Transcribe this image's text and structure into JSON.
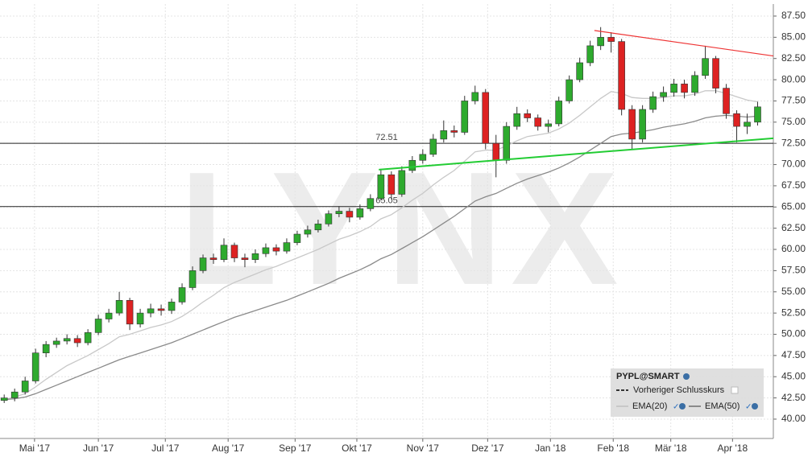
{
  "chart_data": {
    "type": "candlestick",
    "watermark": "LYNX",
    "xlim": [
      -0.4,
      73.5
    ],
    "ylim": [
      37.72,
      88.92
    ],
    "yticks": [
      {
        "value": 40,
        "label": "40.00"
      },
      {
        "value": 42.5,
        "label": "42.50"
      },
      {
        "value": 45,
        "label": "45.00"
      },
      {
        "value": 47.5,
        "label": "47.50"
      },
      {
        "value": 50,
        "label": "50.00"
      },
      {
        "value": 52.5,
        "label": "52.50"
      },
      {
        "value": 55,
        "label": "55.00"
      },
      {
        "value": 57.5,
        "label": "57.50"
      },
      {
        "value": 60,
        "label": "60.00"
      },
      {
        "value": 62.5,
        "label": "62.50"
      },
      {
        "value": 65,
        "label": "65.00"
      },
      {
        "value": 67.5,
        "label": "67.50"
      },
      {
        "value": 70,
        "label": "70.00"
      },
      {
        "value": 72.5,
        "label": "72.50"
      },
      {
        "value": 75,
        "label": "75.00"
      },
      {
        "value": 77.5,
        "label": "77.50"
      },
      {
        "value": 80,
        "label": "80.00"
      },
      {
        "value": 82.5,
        "label": "82.50"
      },
      {
        "value": 85,
        "label": "85.00"
      },
      {
        "value": 87.5,
        "label": "87.50"
      }
    ],
    "xticks": [
      {
        "value": 2.9,
        "label": "Mai '17"
      },
      {
        "value": 9,
        "label": "Jun '17"
      },
      {
        "value": 15.4,
        "label": "Jul '17"
      },
      {
        "value": 21.4,
        "label": "Aug '17"
      },
      {
        "value": 27.8,
        "label": "Sep '17"
      },
      {
        "value": 33.7,
        "label": "Okt '17"
      },
      {
        "value": 40,
        "label": "Nov '17"
      },
      {
        "value": 46.2,
        "label": "Dez '17"
      },
      {
        "value": 52.2,
        "label": "Jan '18"
      },
      {
        "value": 58.2,
        "label": "Feb '18"
      },
      {
        "value": 63.7,
        "label": "Mär '18"
      },
      {
        "value": 69.6,
        "label": "Apr '18"
      }
    ],
    "grid": true,
    "up_color": "#2eaa2e",
    "down_color": "#dd2222",
    "series": [
      {
        "name": "PYPL@SMART",
        "open": [
          42.2,
          42.5,
          43.2,
          44.5,
          47.8,
          48.8,
          49.2,
          49.5,
          49.0,
          50.2,
          51.8,
          52.5,
          54.0,
          51.2,
          52.5,
          53.0,
          52.8,
          53.8,
          55.5,
          57.5,
          59.0,
          58.8,
          60.5,
          59.0,
          58.8,
          59.5,
          60.2,
          59.8,
          60.8,
          61.8,
          62.3,
          63.0,
          64.2,
          64.5,
          63.8,
          64.8,
          66.0,
          68.8,
          66.5,
          69.3,
          70.5,
          71.2,
          73.0,
          74.0,
          73.8,
          77.5,
          78.5,
          72.5,
          70.5,
          74.5,
          76.0,
          75.5,
          74.5,
          74.8,
          77.5,
          80.0,
          82.0,
          84.0,
          85.0,
          84.5,
          76.5,
          73.0,
          76.5,
          78.0,
          78.5,
          79.5,
          78.5,
          80.5,
          82.5,
          79.0,
          76.0,
          74.5,
          75.0
        ],
        "high": [
          42.9,
          43.6,
          45.0,
          48.3,
          49.2,
          49.6,
          50.0,
          49.9,
          50.6,
          52.3,
          53.0,
          55.0,
          54.3,
          53.0,
          53.6,
          53.5,
          54.2,
          56.0,
          58.0,
          59.4,
          59.5,
          61.3,
          60.8,
          59.5,
          60.0,
          60.7,
          60.6,
          61.3,
          62.2,
          62.8,
          63.5,
          64.6,
          65.1,
          64.9,
          65.3,
          66.5,
          69.5,
          69.2,
          69.8,
          71.0,
          71.8,
          73.6,
          75.2,
          74.6,
          78.1,
          79.3,
          78.9,
          73.5,
          75.0,
          76.8,
          76.5,
          75.9,
          75.3,
          78.0,
          80.5,
          82.6,
          84.6,
          86.2,
          85.6,
          84.8,
          77.0,
          77.0,
          78.6,
          79.2,
          80.1,
          80.0,
          81.0,
          84.0,
          82.8,
          79.5,
          76.4,
          76.0,
          77.4
        ],
        "low": [
          41.9,
          42.1,
          42.9,
          44.2,
          47.3,
          48.4,
          48.8,
          48.5,
          48.7,
          49.9,
          51.4,
          52.2,
          50.5,
          50.8,
          52.0,
          52.2,
          52.4,
          53.5,
          55.2,
          57.2,
          58.3,
          58.5,
          58.5,
          57.9,
          58.4,
          59.1,
          59.3,
          59.5,
          60.5,
          61.4,
          62.0,
          62.7,
          63.8,
          63.2,
          63.5,
          64.5,
          65.8,
          65.9,
          66.2,
          69.0,
          70.1,
          70.9,
          72.6,
          73.2,
          73.5,
          77.1,
          71.8,
          68.5,
          70.1,
          74.1,
          75.0,
          74.0,
          73.8,
          74.5,
          77.2,
          79.7,
          81.6,
          83.5,
          83.2,
          75.8,
          71.8,
          72.6,
          76.1,
          77.4,
          78.0,
          77.8,
          78.1,
          80.1,
          78.4,
          75.4,
          72.6,
          73.6,
          74.6
        ],
        "close": [
          42.5,
          43.2,
          44.5,
          47.8,
          48.8,
          49.2,
          49.5,
          49.0,
          50.2,
          51.8,
          52.5,
          54.0,
          51.2,
          52.5,
          53.0,
          52.8,
          53.8,
          55.5,
          57.5,
          59.0,
          58.8,
          60.5,
          59.0,
          58.8,
          59.5,
          60.2,
          59.8,
          60.8,
          61.8,
          62.3,
          63.0,
          64.2,
          64.5,
          63.8,
          64.8,
          66.0,
          68.8,
          66.5,
          69.3,
          70.5,
          71.2,
          73.0,
          74.0,
          73.8,
          77.5,
          78.5,
          72.5,
          70.5,
          74.5,
          76.0,
          75.5,
          74.5,
          74.8,
          77.5,
          80.0,
          82.0,
          84.0,
          85.0,
          84.5,
          76.5,
          73.0,
          76.5,
          78.0,
          78.5,
          79.5,
          78.5,
          80.5,
          82.5,
          79.0,
          76.0,
          74.5,
          75.0,
          76.8
        ]
      }
    ],
    "lines": [
      {
        "name": "EMA(20)",
        "color": "#c8c8c8",
        "values": [
          42.3,
          42.6,
          43.0,
          43.8,
          44.7,
          45.5,
          46.3,
          46.9,
          47.5,
          48.2,
          48.9,
          49.7,
          50.0,
          50.4,
          50.8,
          51.1,
          51.5,
          52.1,
          52.9,
          53.8,
          54.6,
          55.5,
          56.1,
          56.6,
          57.1,
          57.6,
          58.0,
          58.5,
          59.0,
          59.5,
          60.0,
          60.6,
          61.2,
          61.6,
          62.1,
          62.7,
          63.6,
          64.1,
          64.9,
          65.8,
          66.6,
          67.6,
          68.5,
          69.3,
          70.4,
          71.5,
          71.7,
          71.7,
          72.2,
          72.8,
          73.3,
          73.5,
          73.7,
          74.2,
          74.9,
          75.8,
          76.8,
          77.8,
          78.6,
          78.4,
          77.9,
          77.8,
          77.8,
          77.9,
          78.1,
          78.1,
          78.3,
          78.7,
          78.7,
          78.4,
          78.0,
          77.6,
          77.4
        ]
      },
      {
        "name": "EMA(50)",
        "color": "#8a8a8a",
        "values": [
          42.3,
          42.4,
          42.6,
          43.0,
          43.5,
          44.0,
          44.5,
          45.0,
          45.5,
          46.0,
          46.5,
          47.0,
          47.4,
          47.8,
          48.2,
          48.6,
          49.0,
          49.5,
          50.0,
          50.5,
          51.0,
          51.5,
          52.0,
          52.4,
          52.8,
          53.2,
          53.6,
          54.0,
          54.5,
          55.0,
          55.5,
          56.0,
          56.6,
          57.1,
          57.6,
          58.2,
          58.9,
          59.4,
          60.1,
          60.8,
          61.5,
          62.3,
          63.1,
          63.9,
          64.8,
          65.7,
          66.2,
          66.6,
          67.2,
          67.8,
          68.3,
          68.7,
          69.1,
          69.6,
          70.2,
          70.9,
          71.7,
          72.5,
          73.3,
          73.6,
          73.7,
          73.9,
          74.1,
          74.4,
          74.6,
          74.8,
          75.1,
          75.5,
          75.7,
          75.8,
          75.7,
          75.6,
          75.7
        ]
      }
    ],
    "hlines": [
      72.51,
      65.05
    ],
    "trendlines": [
      {
        "color": "#ee3333",
        "x": [
          56.4,
          73.5
        ],
        "y": [
          85.8,
          82.8
        ]
      },
      {
        "color": "#22cc33",
        "x": [
          35.8,
          73.5
        ],
        "y": [
          69.4,
          73.1
        ]
      }
    ],
    "legend_extra": "Vorheriger Schlusskurs"
  }
}
